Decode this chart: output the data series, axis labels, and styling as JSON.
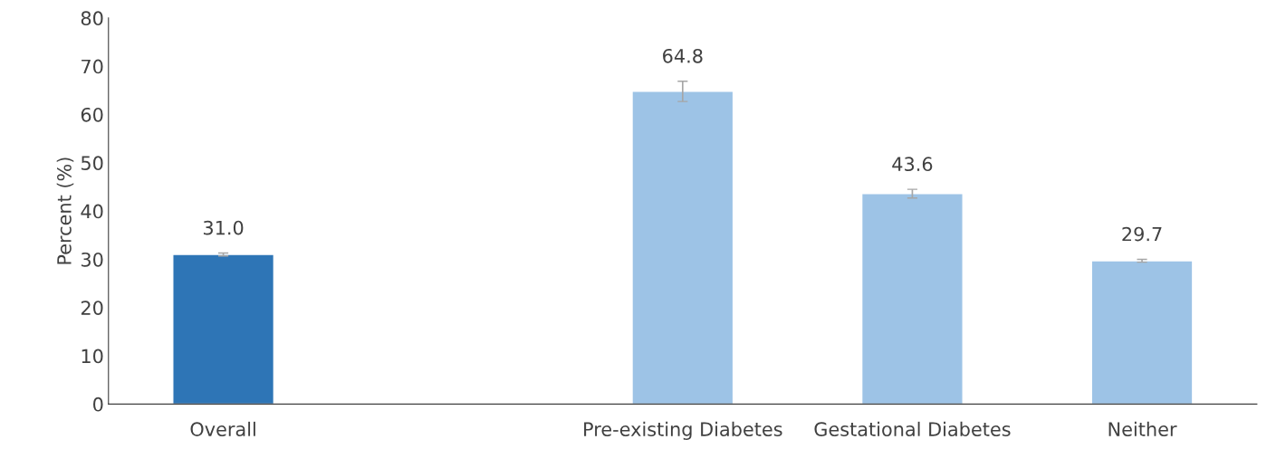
{
  "chart_data": {
    "type": "bar",
    "ylabel": "Percent (%)",
    "categories": [
      "Overall",
      null,
      "Pre-existing Diabetes",
      "Gestational Diabetes",
      "Neither"
    ],
    "values": [
      31.0,
      null,
      64.8,
      43.6,
      29.7
    ],
    "colors": [
      "#2e75b6",
      null,
      "#9dc3e6",
      "#9dc3e6",
      "#9dc3e6"
    ],
    "errors": [
      0.3,
      null,
      2.1,
      0.9,
      0.3
    ],
    "value_labels": [
      "31.0",
      null,
      "64.8",
      "43.6",
      "29.7"
    ],
    "ylim": [
      0,
      80
    ],
    "yticks": [
      0,
      10,
      20,
      30,
      40,
      50,
      60,
      70,
      80
    ],
    "grid": false
  }
}
